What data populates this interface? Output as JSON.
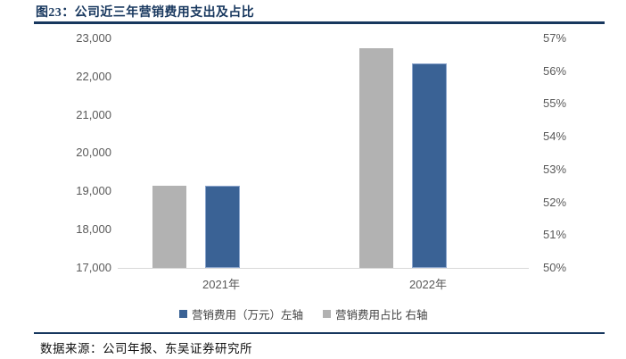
{
  "header": {
    "title": "图23：公司近三年营销费用支出及占比"
  },
  "chart_data": {
    "type": "bar",
    "categories": [
      "2021年",
      "2022年"
    ],
    "series": [
      {
        "name": "营销费用（万元）左轴",
        "axis": "left",
        "color": "#3A6295",
        "values": [
          19150,
          22350
        ]
      },
      {
        "name": "营销费用占比 右轴",
        "axis": "right",
        "color": "#B2B2B2",
        "values": [
          52.5,
          56.7
        ]
      }
    ],
    "left_axis": {
      "min": 17000,
      "max": 23000,
      "tick_step": 1000,
      "ticks": [
        "23,000",
        "22,000",
        "21,000",
        "20,000",
        "19,000",
        "18,000",
        "17,000"
      ]
    },
    "right_axis": {
      "min": 50,
      "max": 57,
      "tick_step": 1,
      "ticks": [
        "57%",
        "56%",
        "55%",
        "54%",
        "53%",
        "52%",
        "51%",
        "50%"
      ]
    },
    "grid": false,
    "legend_position": "bottom"
  },
  "footer": {
    "source": "数据来源：公司年报、东吴证券研究所"
  },
  "colors": {
    "accent_navy": "#17375E",
    "bar_blue": "#3A6295",
    "bar_blue_border": "#8BA5CC",
    "bar_gray": "#B2B2B2",
    "axis_text": "#595959",
    "baseline_gray": "#D9D9D9"
  }
}
